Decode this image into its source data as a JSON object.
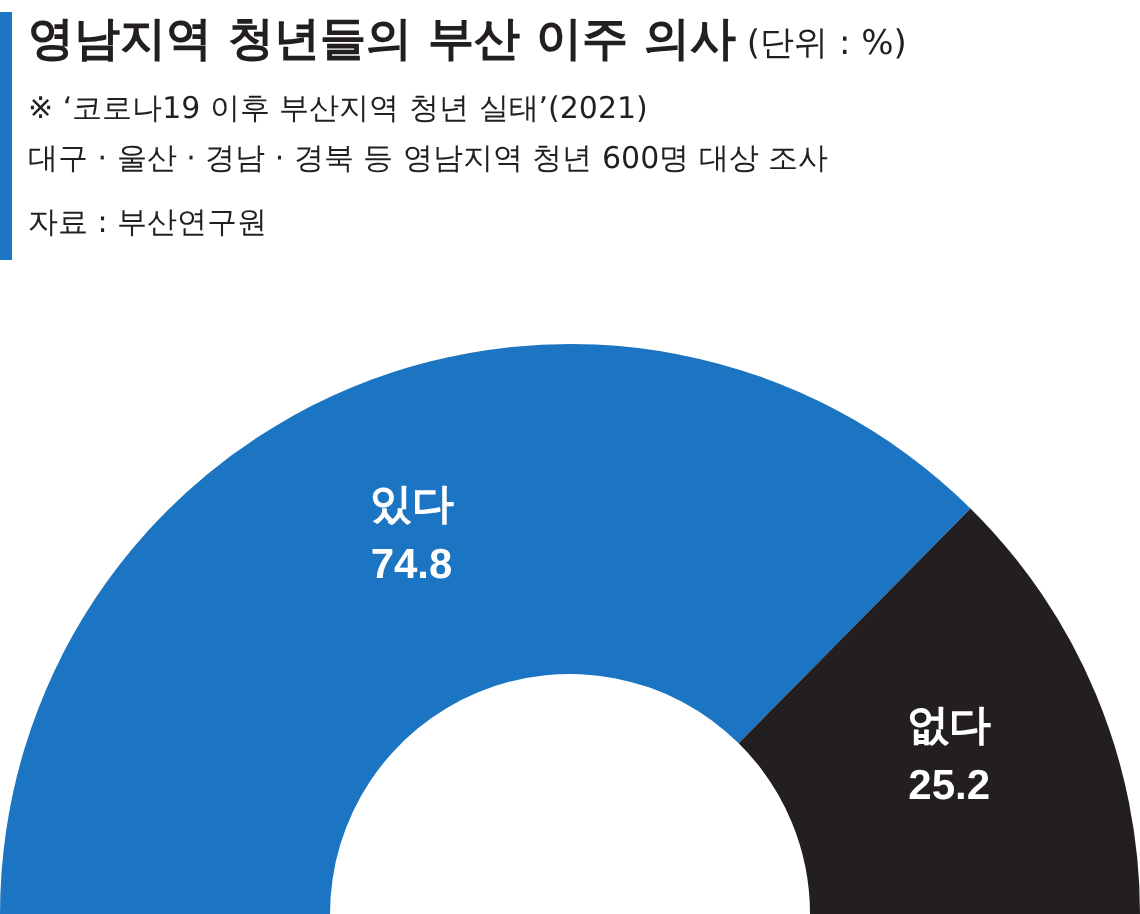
{
  "chart_data": {
    "type": "donut",
    "title": "영남지역 청년들의 부산 이주 의사",
    "subtitle": "※ ‘코로나19 이후 부산지역 청년 실태’(2021)\n대구 · 울산 · 경남 · 경북 등 영남지역 청년 600명 대상 조사",
    "annotations": [
      "(단위 : %)",
      "자료 : 부산연구원"
    ],
    "categories": [
      "있다",
      "없다"
    ],
    "values": [
      74.8,
      25.2
    ],
    "colors": [
      "#1b75c3",
      "#231f20"
    ],
    "data_labels": true
  }
}
